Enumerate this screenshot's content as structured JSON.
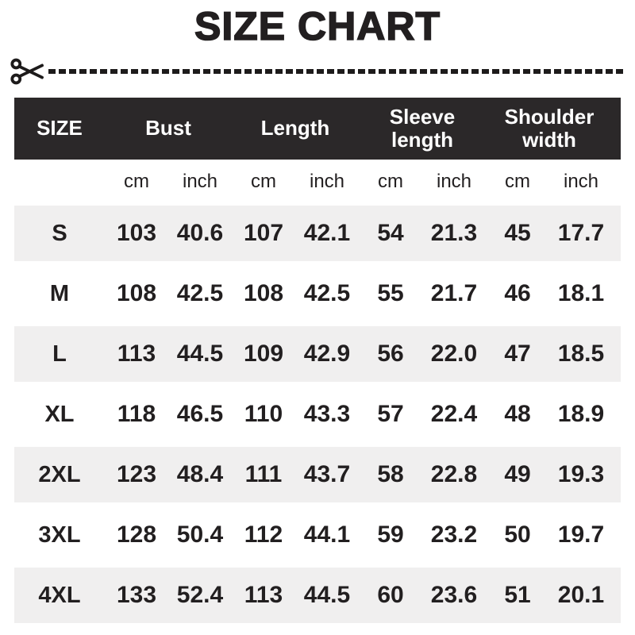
{
  "title": "SIZE CHART",
  "icons": {
    "scissors": "✂"
  },
  "colors": {
    "text": "#221f20",
    "header_bg": "#2b2829",
    "header_text": "#ffffff",
    "row_alt_bg": "#f0efef"
  },
  "chart_data": {
    "type": "table",
    "title": "SIZE CHART",
    "size_header": "SIZE",
    "group_headers": [
      "Bust",
      "Length",
      "Sleeve length",
      "Shoulder width"
    ],
    "unit_headers": [
      "cm",
      "inch",
      "cm",
      "inch",
      "cm",
      "inch",
      "cm",
      "inch"
    ],
    "rows": [
      {
        "size": "S",
        "values": [
          "103",
          "40.6",
          "107",
          "42.1",
          "54",
          "21.3",
          "45",
          "17.7"
        ]
      },
      {
        "size": "M",
        "values": [
          "108",
          "42.5",
          "108",
          "42.5",
          "55",
          "21.7",
          "46",
          "18.1"
        ]
      },
      {
        "size": "L",
        "values": [
          "113",
          "44.5",
          "109",
          "42.9",
          "56",
          "22.0",
          "47",
          "18.5"
        ]
      },
      {
        "size": "XL",
        "values": [
          "118",
          "46.5",
          "110",
          "43.3",
          "57",
          "22.4",
          "48",
          "18.9"
        ]
      },
      {
        "size": "2XL",
        "values": [
          "123",
          "48.4",
          "111",
          "43.7",
          "58",
          "22.8",
          "49",
          "19.3"
        ]
      },
      {
        "size": "3XL",
        "values": [
          "128",
          "50.4",
          "112",
          "44.1",
          "59",
          "23.2",
          "50",
          "19.7"
        ]
      },
      {
        "size": "4XL",
        "values": [
          "133",
          "52.4",
          "113",
          "44.5",
          "60",
          "23.6",
          "51",
          "20.1"
        ]
      }
    ]
  }
}
